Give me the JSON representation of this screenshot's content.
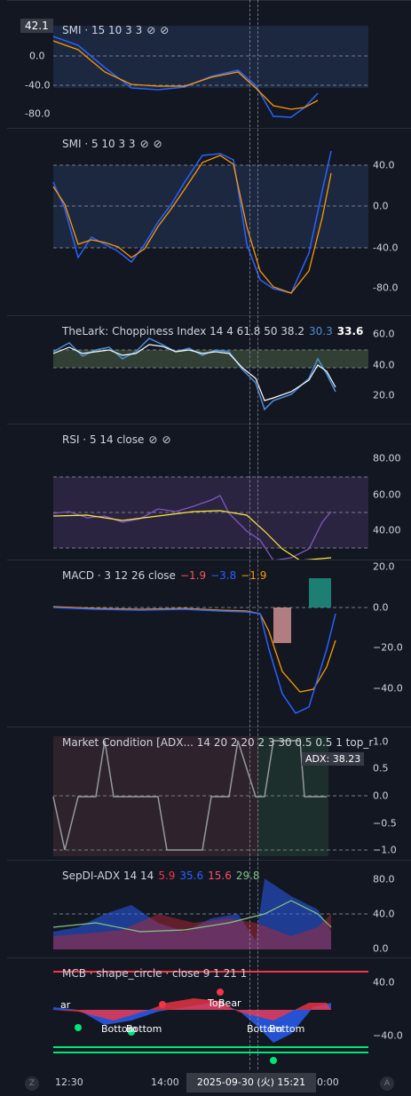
{
  "panes": [
    {
      "title": "SMI · 15 10 3 3",
      "icons": [
        "eye-off-icon",
        "eye-off-icon"
      ],
      "yticks": [
        "0.0",
        "-40.0",
        "-80.0"
      ],
      "badge": "42.1"
    },
    {
      "title": "SMI · 5 10 3 3",
      "icons": [
        "eye-off-icon",
        "eye-off-icon"
      ],
      "yticks": [
        "40.0",
        "0.0",
        "-40.0",
        "-80.0"
      ]
    },
    {
      "title": "TheLark: Choppiness Index 14 4 61.8 50 38.2",
      "v1": "30.3",
      "v2": "33.6",
      "yticks": [
        "60.0",
        "40.0",
        "20.0"
      ]
    },
    {
      "title": "RSI · 5 14 close",
      "icons": [
        "eye-off-icon",
        "eye-off-icon"
      ],
      "yticks": [
        "80.00",
        "60.00",
        "40.00"
      ]
    },
    {
      "title": "MACD · 3 12 26 close",
      "v1": "−1.9",
      "v2": "−3.8",
      "v3": "−1.9",
      "yticks": [
        "20.0",
        "0.0",
        "−20.0",
        "−40.0"
      ]
    },
    {
      "title": "Market Condition [ADX... 14 20 2 20 2 3 30 0.5 0.5 1 top_r",
      "badge": "ADX: 38.23",
      "yticks": [
        "1.0",
        "0.5",
        "0.0",
        "−0.5",
        "−1.0"
      ]
    },
    {
      "title": "SepDI-ADX 14 14",
      "v1": "5.9",
      "v2": "35.6",
      "v3": "15.6",
      "v4": "29.8",
      "yticks": [
        "80.0",
        "40.0",
        "0.0"
      ]
    },
    {
      "title": "MCB · shape_circle · close 9 1 21 1",
      "yticks": [
        "40.0",
        "−40.0"
      ],
      "labels": [
        "ar",
        "Top",
        "Bear",
        "Bottom",
        "Bottom",
        "Bottom",
        "Bottom"
      ]
    }
  ],
  "xaxis": {
    "ticks": [
      "12:30",
      "14:00",
      "0:00"
    ],
    "crosshair": "2025-09-30 (火)   15:21"
  },
  "buttons": {
    "left": "Z",
    "right": "A"
  },
  "colors": {
    "blue": "#2962ff",
    "orange": "#ff9800",
    "red": "#f23645",
    "green": "#22ab94",
    "purple": "#7e57c2"
  }
}
